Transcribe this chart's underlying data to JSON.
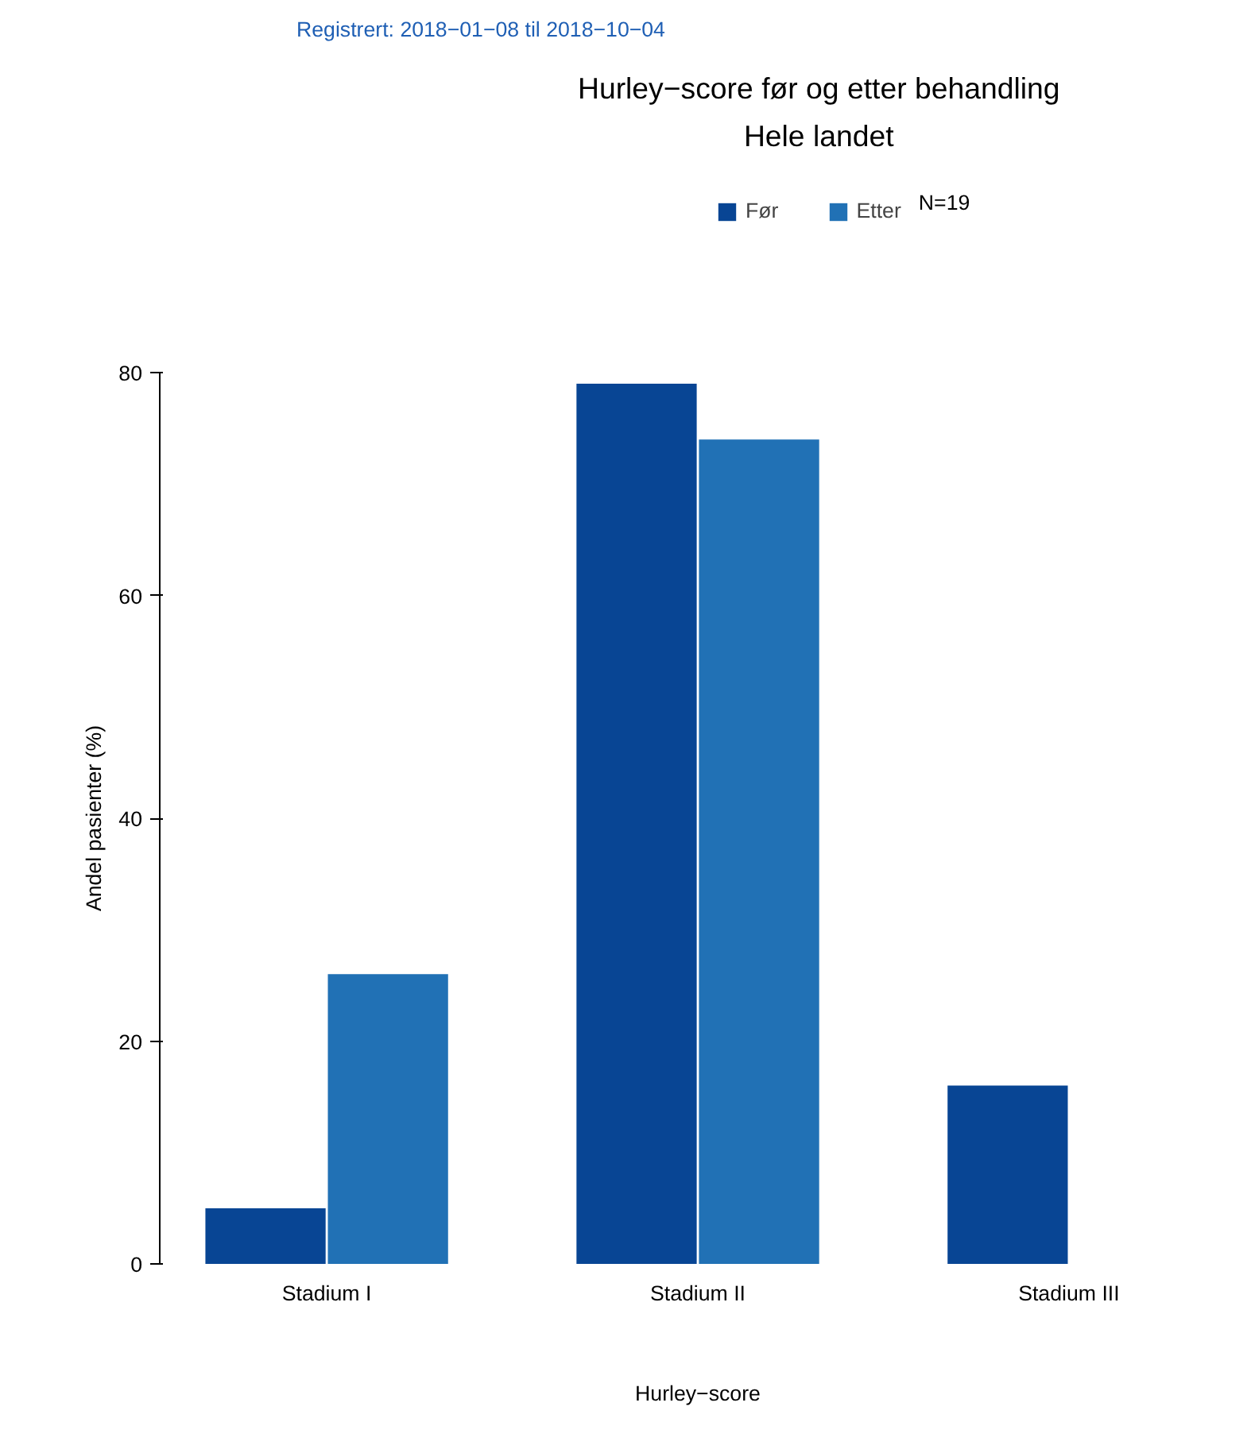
{
  "chart_data": {
    "type": "bar",
    "title": "Hurley−score før og etter behandling",
    "subtitle": "Hele landet",
    "xlabel": "Hurley−score",
    "ylabel": "Andel pasienter (%)",
    "annotations": [
      "Registrert: 2018−01−08 til 2018−10−04",
      "N=19"
    ],
    "categories": [
      "Stadium I",
      "Stadium II",
      "Stadium III"
    ],
    "series": [
      {
        "name": "Før",
        "color": "#084594",
        "values": [
          5,
          79,
          16
        ]
      },
      {
        "name": "Etter",
        "color": "#2171b5",
        "values": [
          26,
          74,
          0
        ]
      }
    ],
    "ylim": [
      0,
      80
    ],
    "yticks": [
      0,
      20,
      40,
      60,
      80
    ],
    "grid": false,
    "legend": "top"
  }
}
